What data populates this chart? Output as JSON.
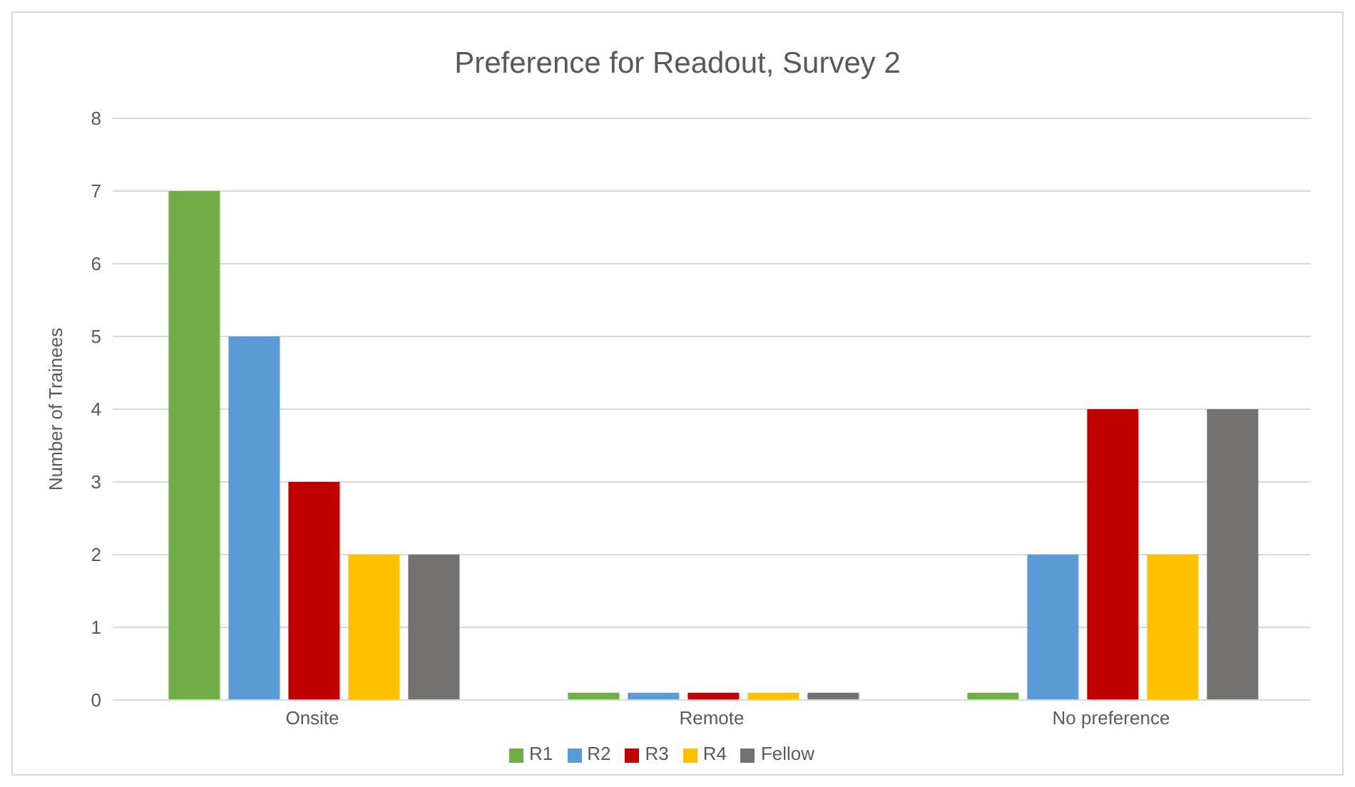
{
  "chart_data": {
    "type": "bar",
    "title": "Preference for Readout, Survey 2",
    "ylabel": "Number of Trainees",
    "categories": [
      "Onsite",
      "Remote",
      "No preference"
    ],
    "series": [
      {
        "name": "R1",
        "color": "#70ad47",
        "values": [
          7,
          0.1,
          0.1
        ]
      },
      {
        "name": "R2",
        "color": "#5b9bd5",
        "values": [
          5,
          0.1,
          2
        ]
      },
      {
        "name": "R3",
        "color": "#c00000",
        "values": [
          3,
          0.1,
          4
        ]
      },
      {
        "name": "R4",
        "color": "#ffc000",
        "values": [
          2,
          0.1,
          2
        ]
      },
      {
        "name": "Fellow",
        "color": "#767171",
        "values": [
          2,
          0.1,
          4
        ]
      }
    ],
    "ylim": [
      0,
      8
    ],
    "yticks": [
      0,
      1,
      2,
      3,
      4,
      5,
      6,
      7,
      8
    ],
    "grid": "y",
    "legend": "bottom"
  }
}
